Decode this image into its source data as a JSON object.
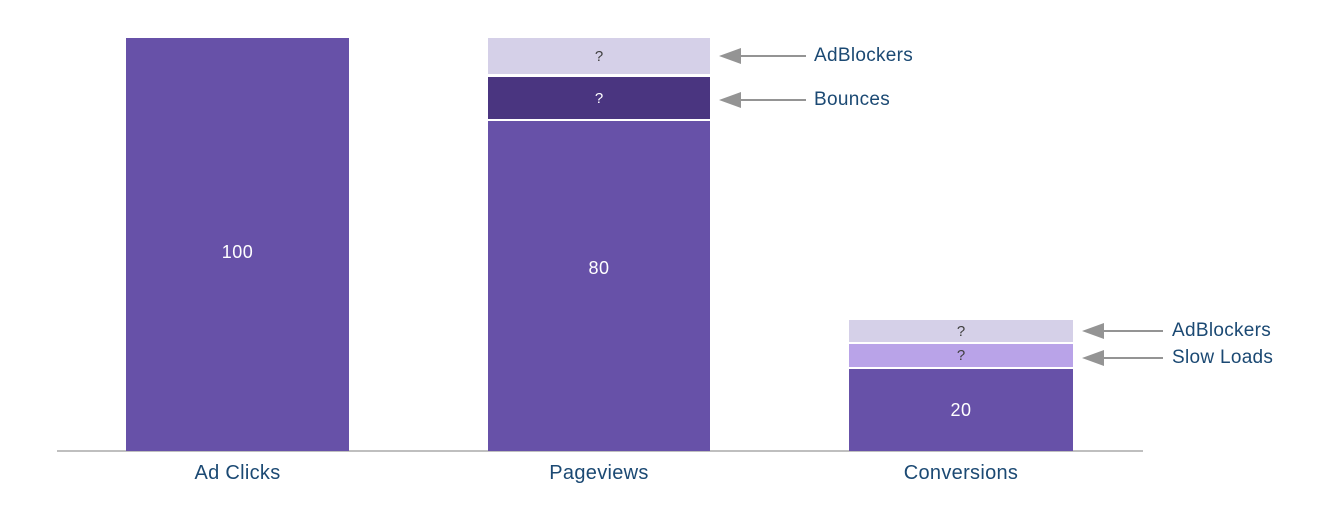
{
  "chart_data": {
    "type": "bar",
    "stacked": true,
    "title": "",
    "xlabel": "",
    "ylabel": "",
    "ylim": [
      0,
      100
    ],
    "grid": false,
    "legend": false,
    "categories": [
      "Ad Clicks",
      "Pageviews",
      "Conversions"
    ],
    "bars": [
      {
        "category": "Ad Clicks",
        "total": 100,
        "segments": [
          {
            "name": "Ad Clicks",
            "value": 100,
            "display": "100",
            "color": "#6751a8",
            "text_color": "#ffffff"
          }
        ]
      },
      {
        "category": "Pageviews",
        "total": 100,
        "segments": [
          {
            "name": "AdBlockers",
            "value": null,
            "display": "?",
            "estimated_value": 9,
            "color": "#d5d0e8",
            "text_color": "#404040"
          },
          {
            "name": "Bounces",
            "value": null,
            "display": "?",
            "estimated_value": 11,
            "color": "#4a3580",
            "text_color": "#ffffff"
          },
          {
            "name": "Pageviews",
            "value": 80,
            "display": "80",
            "color": "#6751a8",
            "text_color": "#ffffff"
          }
        ]
      },
      {
        "category": "Conversions",
        "total": 32,
        "segments": [
          {
            "name": "AdBlockers",
            "value": null,
            "display": "?",
            "estimated_value": 6,
            "color": "#d5d0e8",
            "text_color": "#404040"
          },
          {
            "name": "Slow Loads",
            "value": null,
            "display": "?",
            "estimated_value": 6,
            "color": "#b9a3e8",
            "text_color": "#404040"
          },
          {
            "name": "Conversions",
            "value": 20,
            "display": "20",
            "color": "#6751a8",
            "text_color": "#ffffff"
          }
        ]
      }
    ],
    "annotations": [
      {
        "target": "Pageviews",
        "segment": "AdBlockers",
        "label": "AdBlockers"
      },
      {
        "target": "Pageviews",
        "segment": "Bounces",
        "label": "Bounces"
      },
      {
        "target": "Conversions",
        "segment": "AdBlockers",
        "label": "AdBlockers"
      },
      {
        "target": "Conversions",
        "segment": "Slow Loads",
        "label": "Slow Loads"
      }
    ],
    "colors": {
      "main_purple": "#6751a8",
      "dark_purple": "#4a3580",
      "light_lavender": "#d5d0e8",
      "medium_purple": "#b9a3e8",
      "axis_line": "#bfbfbf",
      "label_navy": "#1b4973",
      "arrow_gray": "#949494",
      "question_mark_dark": "#404040",
      "value_text": "#ffffff"
    }
  }
}
